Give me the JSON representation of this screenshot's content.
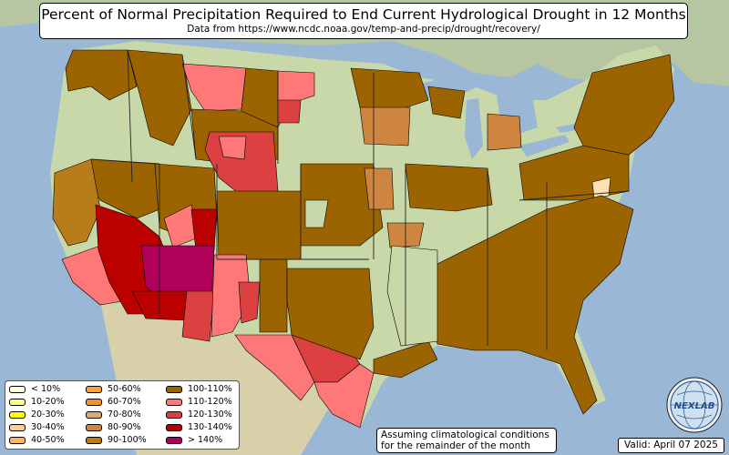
{
  "title": "Percent of Normal Precipitation Required to End Current Hydrological Drought in 12 Months",
  "subtitle": "Data from https://www.ncdc.noaa.gov/temp-and-precip/drought/recovery/",
  "legend": {
    "items": [
      {
        "label": "< 10%",
        "color": "#ffffd9"
      },
      {
        "label": "10-20%",
        "color": "#ffff99"
      },
      {
        "label": "20-30%",
        "color": "#ffff00"
      },
      {
        "label": "30-40%",
        "color": "#ffcc99"
      },
      {
        "label": "40-50%",
        "color": "#ffb366"
      },
      {
        "label": "50-60%",
        "color": "#f5a340"
      },
      {
        "label": "60-70%",
        "color": "#f09030"
      },
      {
        "label": "70-80%",
        "color": "#dca878"
      },
      {
        "label": "80-90%",
        "color": "#cd853f"
      },
      {
        "label": "90-100%",
        "color": "#b87d1a"
      },
      {
        "label": "100-110%",
        "color": "#9c6400"
      },
      {
        "label": "110-120%",
        "color": "#ff7878"
      },
      {
        "label": "120-130%",
        "color": "#dd4040"
      },
      {
        "label": "130-140%",
        "color": "#bb0000"
      },
      {
        "label": "> 140%",
        "color": "#b0005a"
      }
    ]
  },
  "note_line1": "Assuming climatological conditions",
  "note_line2": "for the remainder of the month",
  "valid": "Valid: April 07 2025",
  "logo": {
    "text": "NEXLAB",
    "icon": "globe-logo-icon"
  },
  "colors": {
    "ocean": "#9ab7d6",
    "land_green": "#c8d8a8",
    "land_tan": "#d8d0a8",
    "mountain_brown": "#b8a878",
    "canada_land": "#b5c6a0",
    "lakes": "#9ab7d6"
  },
  "map_regions": [
    {
      "name": "pacific-northwest",
      "category": "100-110%"
    },
    {
      "name": "montana-south",
      "category": "110-120%"
    },
    {
      "name": "wyoming",
      "category": "100-110%"
    },
    {
      "name": "colorado-west",
      "category": "110-120%"
    },
    {
      "name": "arizona",
      "category": "130-140%"
    },
    {
      "name": "new-mexico-west",
      "category": "> 140%"
    },
    {
      "name": "texas-west",
      "category": "110-120%"
    },
    {
      "name": "texas-central",
      "category": "120-130%"
    },
    {
      "name": "southeast",
      "category": "100-110%"
    },
    {
      "name": "northeast",
      "category": "100-110%"
    },
    {
      "name": "nebraska",
      "category": "80-90%"
    },
    {
      "name": "minnesota-north",
      "category": "100-110%"
    }
  ]
}
